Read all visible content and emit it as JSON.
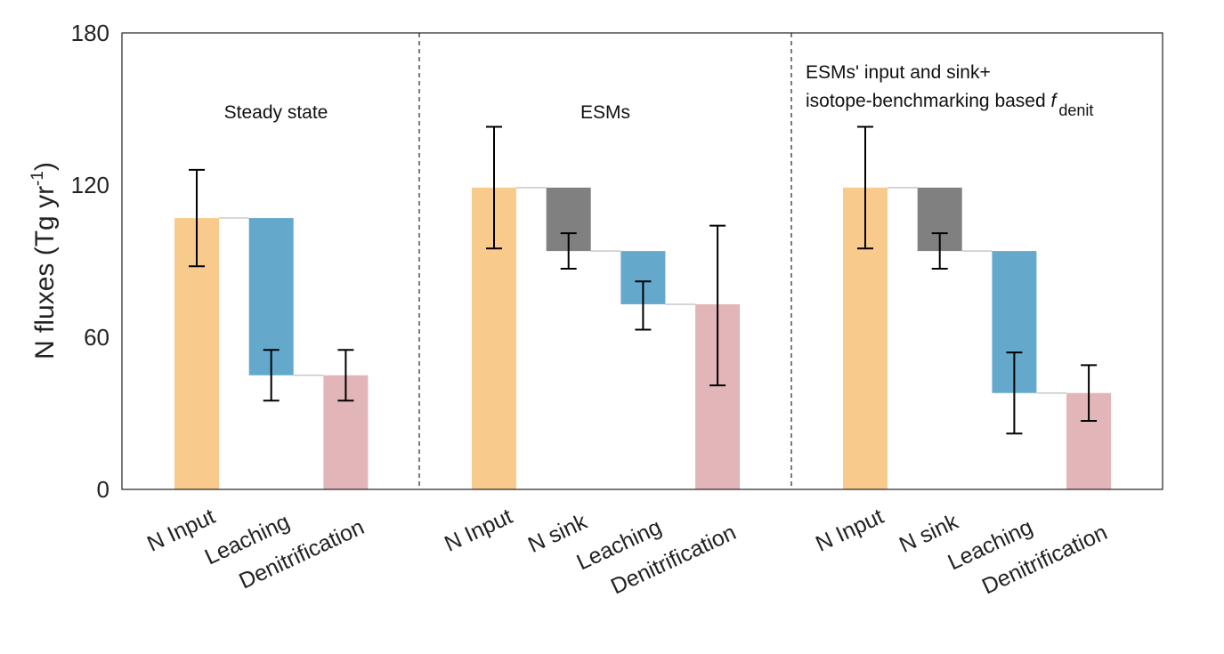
{
  "chart_data": {
    "type": "bar",
    "subtype": "waterfall",
    "ylabel": "N fluxes (Tg yr",
    "ylabel_sup": "-1",
    "ylabel_close": ")",
    "ylim": [
      0,
      180
    ],
    "yticks": [
      0,
      60,
      120,
      180
    ],
    "grid": false,
    "colors": {
      "input": "#f8cb8c",
      "sink": "#808080",
      "leaching": "#64a9cb",
      "denitrification": "#e2b5b8"
    },
    "panels": [
      {
        "title_lines": [
          "Steady state"
        ],
        "bars": [
          {
            "label": "N Input",
            "kind": "input",
            "bottom": 0,
            "top": 107,
            "err": [
              88,
              126
            ]
          },
          {
            "label": "Leaching",
            "kind": "leaching",
            "bottom": 45,
            "top": 107,
            "err": [
              35,
              55
            ]
          },
          {
            "label": "Denitrification",
            "kind": "denitrification",
            "bottom": 0,
            "top": 45,
            "err": [
              35,
              55
            ]
          }
        ]
      },
      {
        "title_lines": [
          "ESMs"
        ],
        "bars": [
          {
            "label": "N Input",
            "kind": "input",
            "bottom": 0,
            "top": 119,
            "err": [
              95,
              143
            ]
          },
          {
            "label": "N sink",
            "kind": "sink",
            "bottom": 94,
            "top": 119,
            "err": [
              87,
              101
            ]
          },
          {
            "label": "Leaching",
            "kind": "leaching",
            "bottom": 73,
            "top": 94,
            "err": [
              63,
              82
            ]
          },
          {
            "label": "Denitrification",
            "kind": "denitrification",
            "bottom": 0,
            "top": 73,
            "err": [
              41,
              104
            ]
          }
        ]
      },
      {
        "title_lines": [
          "ESMs' input and sink+",
          "isotope-benchmarking based "
        ],
        "title_italic": "f",
        "title_sub": "denit",
        "bars": [
          {
            "label": "N Input",
            "kind": "input",
            "bottom": 0,
            "top": 119,
            "err": [
              95,
              143
            ]
          },
          {
            "label": "N sink",
            "kind": "sink",
            "bottom": 94,
            "top": 119,
            "err": [
              87,
              101
            ]
          },
          {
            "label": "Leaching",
            "kind": "leaching",
            "bottom": 38,
            "top": 94,
            "err": [
              22,
              54
            ]
          },
          {
            "label": "Denitrification",
            "kind": "denitrification",
            "bottom": 0,
            "top": 38,
            "err": [
              27,
              49
            ]
          }
        ]
      }
    ]
  }
}
